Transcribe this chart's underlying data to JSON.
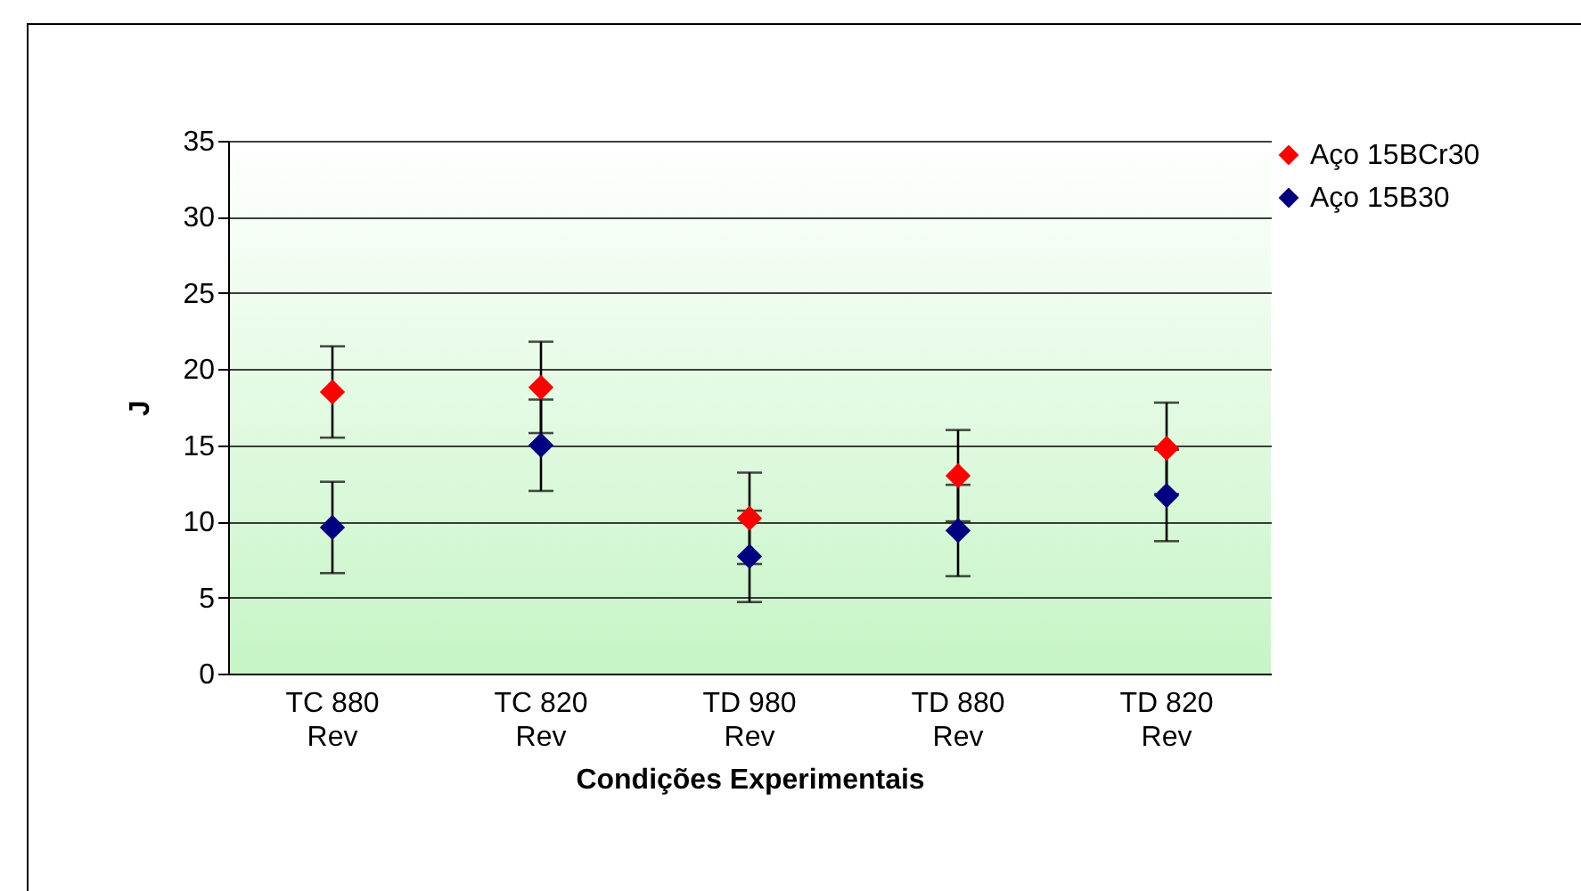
{
  "chart_data": {
    "type": "scatter",
    "xlabel": "Condições Experimentais",
    "ylabel": "J",
    "categories": [
      "TC 880 Rev",
      "TC 820 Rev",
      "TD 980 Rev",
      "TD 880 Rev",
      "TD 820 Rev"
    ],
    "series": [
      {
        "name": "Aço 15BCr30",
        "color": "#ff0000",
        "values": [
          18.5,
          18.8,
          10.2,
          13.0,
          14.8
        ],
        "errors": [
          3,
          3,
          3,
          3,
          3
        ]
      },
      {
        "name": "Aço 15B30",
        "color": "#000080",
        "values": [
          9.6,
          15.0,
          7.7,
          9.4,
          11.7
        ],
        "errors": [
          3,
          3,
          3,
          3,
          3
        ]
      }
    ],
    "ylim": [
      0,
      35
    ],
    "yticks": [
      0,
      5,
      10,
      15,
      20,
      25,
      30,
      35
    ],
    "grid": "y",
    "legend": "right",
    "marker": "diamond"
  }
}
